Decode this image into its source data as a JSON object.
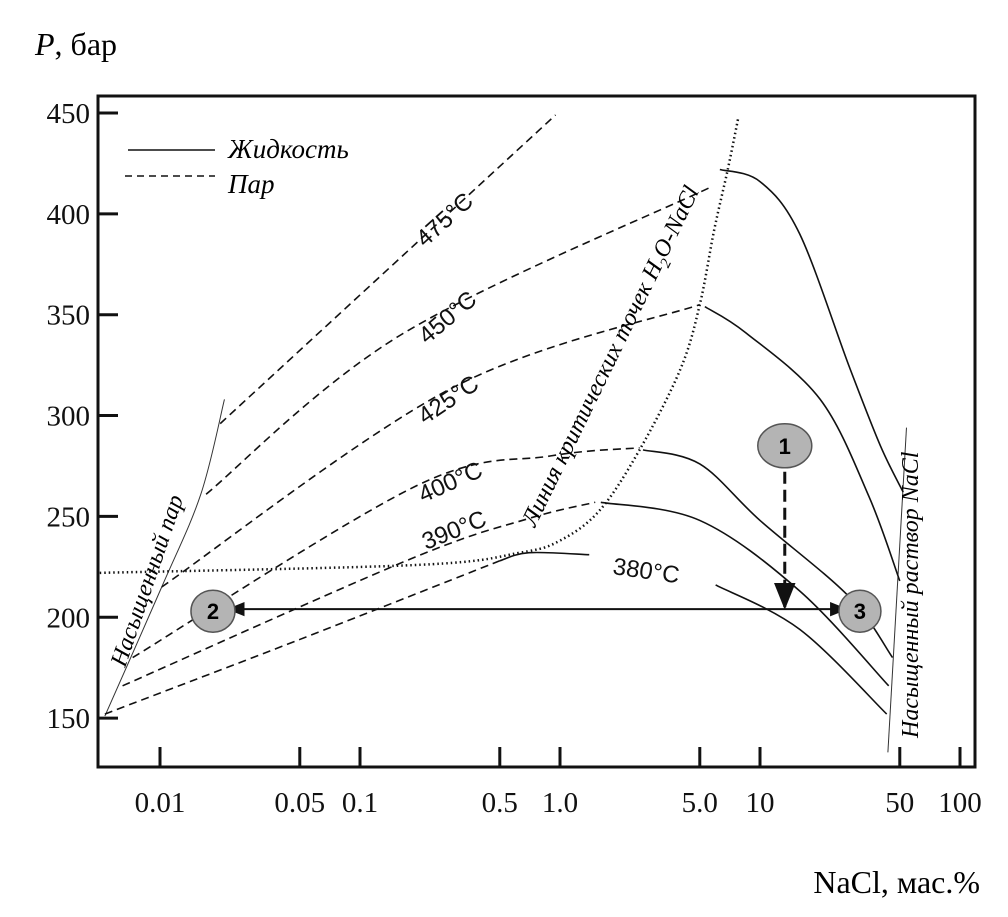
{
  "chart_data": {
    "type": "line",
    "title": "",
    "ylabel_var": "P",
    "ylabel_unit": ", бар",
    "xlabel": "NaCl, мас.%",
    "xscale": "log",
    "xlim": [
      0.0049,
      119
    ],
    "ylim": [
      126,
      455
    ],
    "x_ticks": [
      0.01,
      0.05,
      0.1,
      0.5,
      1.0,
      5.0,
      10,
      50,
      100
    ],
    "x_tick_labels": [
      "0.01",
      "0.05",
      "0.1",
      "0.5",
      "1.0",
      "5.0",
      "10",
      "50",
      "100"
    ],
    "y_ticks": [
      150,
      200,
      250,
      300,
      350,
      400,
      450
    ],
    "y_tick_labels": [
      "150",
      "200",
      "250",
      "300",
      "350",
      "400",
      "450"
    ],
    "grid": false,
    "legend": {
      "placement": "top-left",
      "entries": [
        {
          "label": "Жидкость",
          "style": "solid"
        },
        {
          "label": "Пар",
          "style": "dashed"
        }
      ]
    },
    "isotherms": [
      {
        "label": "475°C",
        "vapor": [
          [
            0.02,
            296
          ],
          [
            0.95,
            449
          ]
        ],
        "liquid": []
      },
      {
        "label": "450°C",
        "vapor": [
          [
            0.017,
            261
          ],
          [
            0.16,
            340
          ],
          [
            5.6,
            413
          ]
        ],
        "liquid": [
          [
            6.3,
            422
          ],
          [
            10,
            416
          ],
          [
            15.8,
            390
          ],
          [
            28,
            324
          ],
          [
            40,
            285
          ],
          [
            52,
            262
          ]
        ]
      },
      {
        "label": "425°C",
        "vapor": [
          [
            0.0102,
            215
          ],
          [
            0.28,
            313
          ],
          [
            5.0,
            355
          ]
        ],
        "liquid": [
          [
            5.3,
            354
          ],
          [
            8.5,
            341
          ],
          [
            20,
            308
          ],
          [
            35,
            260
          ],
          [
            50,
            218
          ]
        ]
      },
      {
        "label": "400°C",
        "vapor": [
          [
            0.0073,
            180
          ],
          [
            0.19,
            265
          ],
          [
            0.9,
            280
          ],
          [
            2.5,
            284
          ]
        ],
        "liquid": [
          [
            2.6,
            283
          ],
          [
            5,
            276
          ],
          [
            10,
            248
          ],
          [
            28,
            210
          ],
          [
            46,
            180
          ]
        ]
      },
      {
        "label": "390°C",
        "vapor": [
          [
            0.0065,
            166
          ],
          [
            0.18,
            229
          ],
          [
            0.7,
            249
          ],
          [
            1.5,
            257
          ]
        ],
        "liquid": [
          [
            1.6,
            257
          ],
          [
            5.0,
            248
          ],
          [
            15.8,
            213
          ],
          [
            44,
            166
          ]
        ]
      },
      {
        "label": "380°C",
        "vapor": [
          [
            0.0053,
            152
          ],
          [
            0.05,
            189
          ],
          [
            0.5,
            228
          ]
        ],
        "liquid": [
          [
            0.5,
            228
          ],
          [
            0.7,
            232
          ],
          [
            1.4,
            231
          ]
        ],
        "liquid_after_label": [
          [
            6.0,
            216
          ],
          [
            15.8,
            194
          ],
          [
            43,
            152
          ]
        ]
      }
    ],
    "critical_line": {
      "label": "Линия критических точек H",
      "label_sub": "2",
      "label_end": "O-NaCl",
      "points": [
        [
          0.005,
          222
        ],
        [
          0.2,
          226
        ],
        [
          0.63,
          232
        ],
        [
          1.0,
          238
        ],
        [
          1.58,
          253
        ],
        [
          2.5,
          283
        ],
        [
          4.0,
          323
        ],
        [
          5.0,
          355
        ],
        [
          5.9,
          392
        ],
        [
          6.9,
          422
        ],
        [
          7.8,
          448
        ]
      ]
    },
    "saturated_vapor": {
      "label": "Насыщенный пар",
      "points": [
        [
          0.0053,
          151
        ],
        [
          0.0102,
          215
        ],
        [
          0.016,
          261
        ],
        [
          0.021,
          308
        ]
      ]
    },
    "saturated_solution": {
      "label": "Насыщенный раствор NaCl",
      "points": [
        [
          43.6,
          133
        ],
        [
          54,
          294
        ]
      ]
    },
    "markers": [
      {
        "label": "1",
        "x": 13.3,
        "P": 285
      },
      {
        "label": "2",
        "x": 0.0184,
        "P": 203
      },
      {
        "label": "3",
        "x": 31.6,
        "P": 203
      }
    ],
    "arrows": [
      {
        "from": "1",
        "to_x": 13.3,
        "to_P": 205,
        "style": "dashed"
      },
      {
        "from_x": 0.022,
        "to_x": 27,
        "P": 204,
        "style": "double-headed solid"
      }
    ],
    "colors": {
      "line": "#111111",
      "marker_fill": "#b4b4b4",
      "marker_stroke": "#555555"
    }
  }
}
